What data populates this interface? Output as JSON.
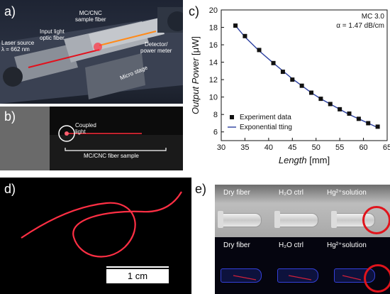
{
  "panels": {
    "a": {
      "label": "a)",
      "annotations": {
        "laser_source": "Laser source",
        "wavelength": "λ = 662 nm",
        "input_fiber_line1": "Input light",
        "input_fiber_line2": "optic fiber",
        "sample_line1": "MC/CNC",
        "sample_line2": "sample fiber",
        "detector_line1": "Detector/",
        "detector_line2": "power meter",
        "stage": "Micro stage"
      }
    },
    "b": {
      "label": "b)",
      "coupled_line1": "Coupled",
      "coupled_line2": "light",
      "fiber_sample": "MC/CNC fiber sample"
    },
    "c": {
      "label": "c)"
    },
    "d": {
      "label": "d)",
      "scale_bar": "1 cm"
    },
    "e": {
      "label": "e)",
      "columns": [
        "Dry fiber",
        "H₂O ctrl",
        "Hg²⁺solution"
      ]
    }
  },
  "chart_data": {
    "type": "scatter",
    "annotation_line1": "MC 3.0",
    "annotation_line2": "α = 1.47 dB/cm",
    "xlabel_main": "Length",
    "xlabel_unit": " [mm]",
    "ylabel_main": "Output Power",
    "ylabel_unit": " [μW]",
    "xlim": [
      30,
      65
    ],
    "ylim": [
      5,
      20
    ],
    "xticks": [
      30,
      35,
      40,
      45,
      50,
      55,
      60,
      65
    ],
    "yticks": [
      6,
      8,
      10,
      12,
      14,
      16,
      18,
      20
    ],
    "legend_position": "bottom-left",
    "grid": false,
    "series": [
      {
        "name": "Experiment data",
        "marker": "square",
        "color": "#111111",
        "x": [
          33,
          35,
          38,
          41,
          43,
          45,
          47,
          49,
          51,
          53,
          55,
          57,
          59,
          61,
          63
        ],
        "y": [
          18.2,
          17.0,
          15.4,
          13.9,
          12.9,
          12.0,
          11.3,
          10.5,
          9.8,
          9.2,
          8.6,
          8.1,
          7.5,
          7.0,
          6.6
        ]
      },
      {
        "name": "Exponential tting",
        "marker": "line",
        "color": "#2b3fa0",
        "x": [
          33,
          35,
          38,
          41,
          43,
          45,
          47,
          49,
          51,
          53,
          55,
          57,
          59,
          61,
          63
        ],
        "y": [
          18.2,
          16.9,
          15.3,
          13.9,
          13.0,
          12.1,
          11.3,
          10.5,
          9.8,
          9.2,
          8.6,
          8.0,
          7.5,
          7.0,
          6.5
        ]
      }
    ]
  }
}
